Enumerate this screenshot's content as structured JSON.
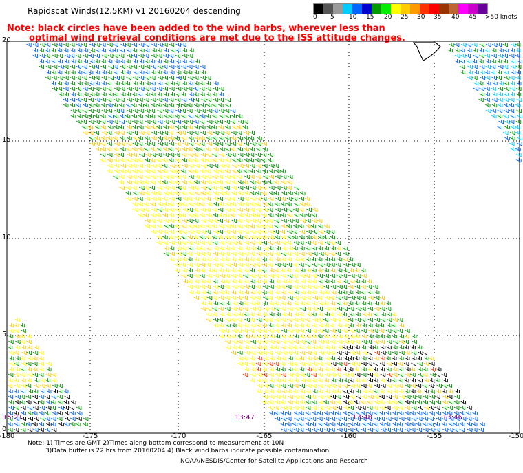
{
  "title": "Rapidscat Winds(12.5KM) v1 20160204 descending",
  "note_line1": "Note: black circles have been added to the wind barbs, wherever less than",
  "note_line2": "optimal wind retrieval conditions are met due to the ISS attitude changes.",
  "legend": {
    "colors": [
      "#000000",
      "#555555",
      "#9a9a9a",
      "#00ccff",
      "#0066ff",
      "#0000cc",
      "#009900",
      "#00ee00",
      "#ffff00",
      "#ffcc00",
      "#ff9900",
      "#ff3300",
      "#ff0000",
      "#993300",
      "#bb6633",
      "#ff00ff",
      "#cc00cc",
      "#660099"
    ],
    "labels": [
      "0",
      "5",
      "10",
      "15",
      "20",
      "25",
      "30",
      "35",
      "40",
      "45",
      ">50 knots"
    ]
  },
  "axes": {
    "x_ticks": [
      "-180",
      "-175",
      "-170",
      "-165",
      "-160",
      "-155",
      "-150"
    ],
    "y_ticks": [
      "20",
      "15",
      "10",
      "5",
      "0"
    ]
  },
  "time_labels": [
    "15:21",
    "13:47",
    "13:48",
    "13:46"
  ],
  "footer": {
    "line1": "Note: 1) Times are GMT 2)Times along bottom correspond to measurement at 10N",
    "line2": "3)Data buffer is 22 hrs from 20160204 4) Black wind barbs indicate possible contamination",
    "line3": "NOAA/NESDIS/Center for Satellite Applications and Research"
  }
}
